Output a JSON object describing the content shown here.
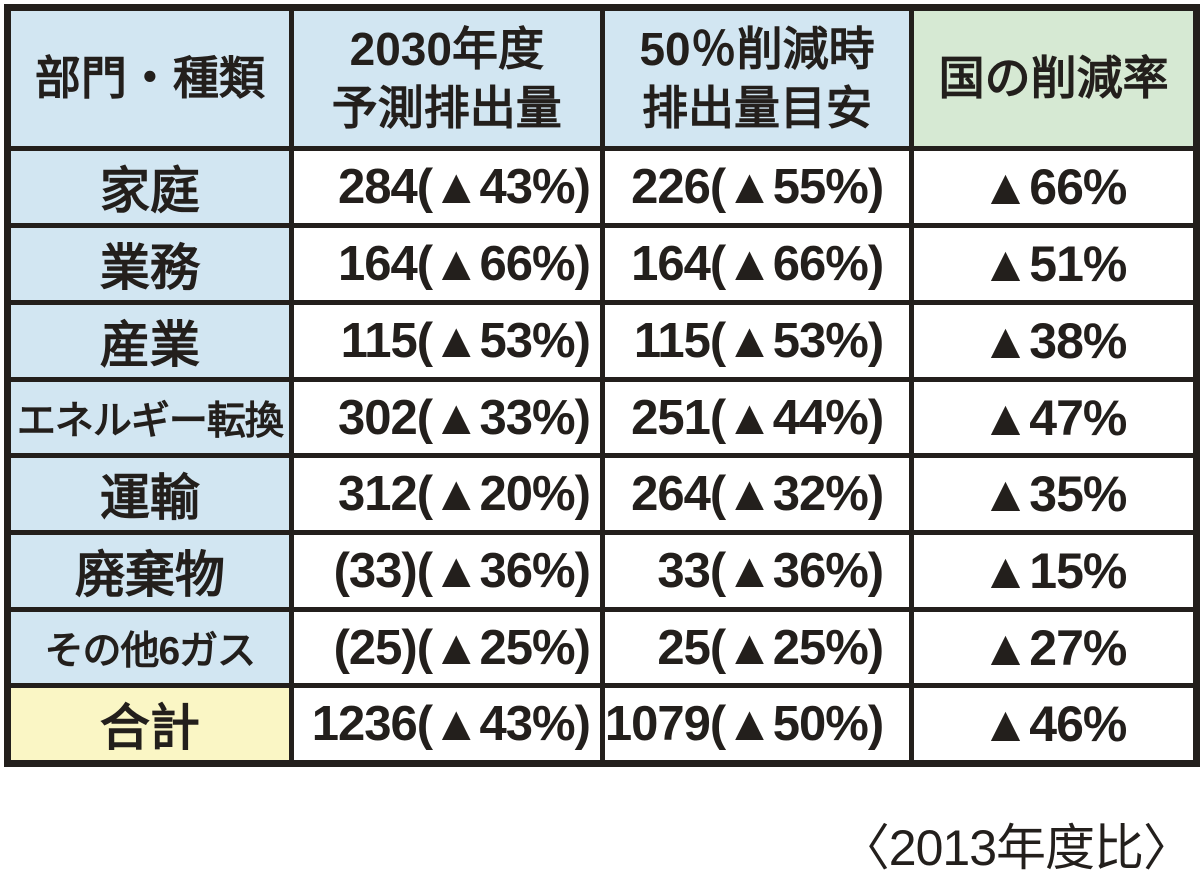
{
  "table": {
    "headers": [
      {
        "line1": "部門・種類",
        "line2": ""
      },
      {
        "line1": "2030年度",
        "line2": "予測排出量"
      },
      {
        "line1": "50％削減時",
        "line2": "排出量目安"
      },
      {
        "line1": "国の削減率",
        "line2": ""
      }
    ],
    "rows": [
      {
        "label": "家庭",
        "forecast_2030": "284(▲43%)",
        "target_50": "226(▲55%)",
        "national_rate": "▲66%"
      },
      {
        "label": "業務",
        "forecast_2030": "164(▲66%)",
        "target_50": "164(▲66%)",
        "national_rate": "▲51%"
      },
      {
        "label": "産業",
        "forecast_2030": "115(▲53%)",
        "target_50": "115(▲53%)",
        "national_rate": "▲38%"
      },
      {
        "label": "エネルギー転換",
        "forecast_2030": "302(▲33%)",
        "target_50": "251(▲44%)",
        "national_rate": "▲47%"
      },
      {
        "label": "運輸",
        "forecast_2030": "312(▲20%)",
        "target_50": "264(▲32%)",
        "national_rate": "▲35%"
      },
      {
        "label": "廃棄物",
        "forecast_2030": "(33)(▲36%)",
        "target_50": "33(▲36%)",
        "national_rate": "▲15%"
      },
      {
        "label": "その他6ガス",
        "forecast_2030": "(25)(▲25%)",
        "target_50": "25(▲25%)",
        "national_rate": "▲27%"
      },
      {
        "label": "合計",
        "forecast_2030": "1236(▲43%)",
        "target_50": "1079(▲50%)",
        "national_rate": "▲46%"
      }
    ],
    "caption": "〈2013年度比〉"
  },
  "colors": {
    "header_blue": "#d2e6f2",
    "header_green": "#d6e9d3",
    "total_yellow": "#faf6c5",
    "border_black": "#231f1c"
  },
  "chart_data": {
    "type": "table",
    "columns": [
      "部門・種類",
      "2030年度予測排出量",
      "50％削減時排出量目安",
      "国の削減率"
    ],
    "rows": [
      [
        "家庭",
        "284(▲43%)",
        "226(▲55%)",
        "▲66%"
      ],
      [
        "業務",
        "164(▲66%)",
        "164(▲66%)",
        "▲51%"
      ],
      [
        "産業",
        "115(▲53%)",
        "115(▲53%)",
        "▲38%"
      ],
      [
        "エネルギー転換",
        "302(▲33%)",
        "251(▲44%)",
        "▲47%"
      ],
      [
        "運輸",
        "312(▲20%)",
        "264(▲32%)",
        "▲35%"
      ],
      [
        "廃棄物",
        "(33)(▲36%)",
        "33(▲36%)",
        "▲15%"
      ],
      [
        "その他6ガス",
        "(25)(▲25%)",
        "25(▲25%)",
        "▲27%"
      ],
      [
        "合計",
        "1236(▲43%)",
        "1079(▲50%)",
        "▲46%"
      ]
    ],
    "note": "〈2013年度比〉"
  }
}
